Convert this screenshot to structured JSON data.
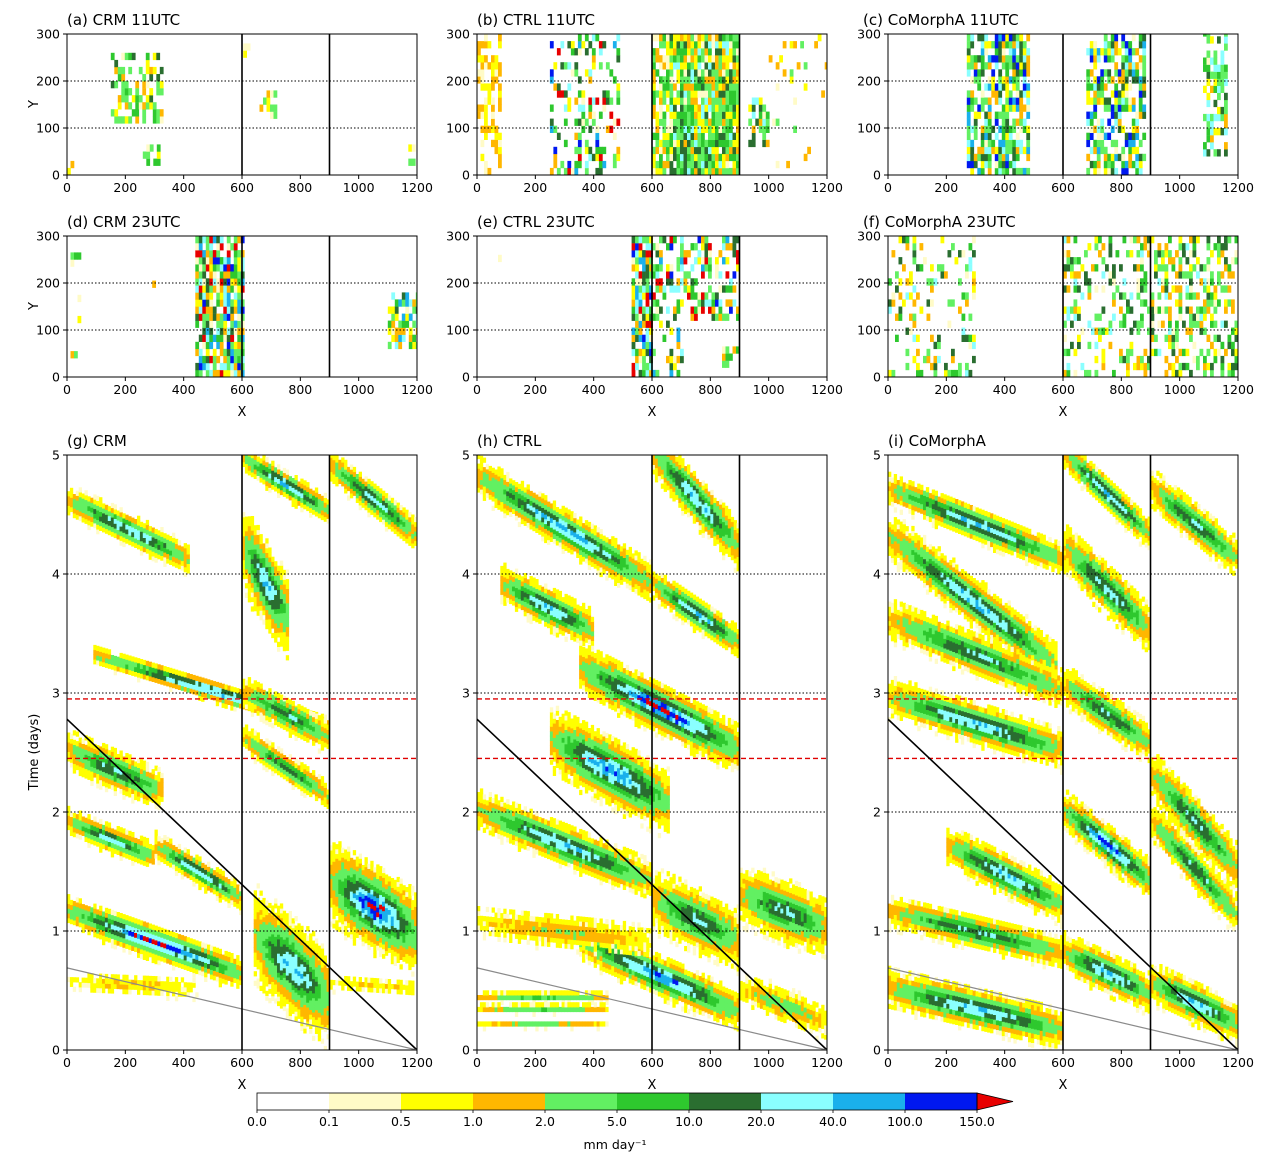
{
  "colorbar": {
    "levels": [
      "0.0",
      "0.1",
      "0.5",
      "1.0",
      "2.0",
      "5.0",
      "10.0",
      "20.0",
      "40.0",
      "100.0",
      "150.0"
    ],
    "colors": [
      "#ffffff",
      "#fffbc7",
      "#ffff00",
      "#ffb700",
      "#62f062",
      "#2ec82e",
      "#2a6e30",
      "#8affff",
      "#1ab0ec",
      "#0018f0",
      "#e80000"
    ],
    "label": "mm day⁻¹"
  },
  "chart_data": [
    {
      "panel": "a",
      "type": "heatmap",
      "title": "(a) CRM 11UTC",
      "xlabel": "",
      "ylabel": "Y",
      "xlim": [
        0,
        1200
      ],
      "ylim": [
        0,
        300
      ],
      "xticks": [
        "0",
        "200",
        "400",
        "600",
        "800",
        "1000",
        "1200"
      ],
      "yticks": [
        "0",
        "100",
        "200",
        "300"
      ],
      "vlines": [
        600,
        900
      ],
      "hlines_dotted": [
        100,
        200
      ],
      "precip_features": [
        {
          "x": [
            150,
            330
          ],
          "y": [
            110,
            250
          ],
          "max_category": "5.0–10.0"
        },
        {
          "x": [
            260,
            310
          ],
          "y": [
            20,
            60
          ],
          "max_category": "5.0–10.0"
        },
        {
          "x": [
            660,
            720
          ],
          "y": [
            120,
            170
          ],
          "max_category": "5.0–10.0"
        },
        {
          "x": [
            1170,
            1200
          ],
          "y": [
            20,
            60
          ],
          "max_category": "5.0–10.0"
        }
      ]
    },
    {
      "panel": "b",
      "type": "heatmap",
      "title": "(b) CTRL 11UTC",
      "xlabel": "",
      "ylabel": "",
      "xlim": [
        0,
        1200
      ],
      "ylim": [
        0,
        300
      ],
      "xticks": [
        "0",
        "200",
        "400",
        "600",
        "800",
        "1000",
        "1200"
      ],
      "yticks": [
        "0",
        "100",
        "200",
        "300"
      ],
      "vlines": [
        600,
        900
      ],
      "hlines_dotted": [
        100,
        200
      ],
      "precip_features": [
        {
          "x": [
            0,
            80
          ],
          "y": [
            0,
            300
          ],
          "max_category": "0.5–1.0"
        },
        {
          "x": [
            250,
            480
          ],
          "y": [
            0,
            300
          ],
          "max_category": ">150.0"
        },
        {
          "x": [
            600,
            900
          ],
          "y": [
            0,
            300
          ],
          "max_category": "10.0–20.0"
        },
        {
          "x": [
            930,
            1000
          ],
          "y": [
            60,
            160
          ],
          "max_category": "20.0–40.0"
        }
      ]
    },
    {
      "panel": "c",
      "type": "heatmap",
      "title": "(c) CoMorphA 11UTC",
      "xlabel": "",
      "ylabel": "",
      "xlim": [
        0,
        1200
      ],
      "ylim": [
        0,
        300
      ],
      "xticks": [
        "0",
        "200",
        "400",
        "600",
        "800",
        "1000",
        "1200"
      ],
      "yticks": [
        "0",
        "100",
        "200",
        "300"
      ],
      "vlines": [
        600,
        900
      ],
      "hlines_dotted": [
        100,
        200
      ],
      "precip_features": [
        {
          "x": [
            270,
            480
          ],
          "y": [
            0,
            300
          ],
          "max_category": "40.0–100.0"
        },
        {
          "x": [
            680,
            880
          ],
          "y": [
            0,
            300
          ],
          "max_category": "40.0–100.0"
        },
        {
          "x": [
            1080,
            1160
          ],
          "y": [
            40,
            300
          ],
          "max_category": "20.0–40.0"
        }
      ]
    },
    {
      "panel": "d",
      "type": "heatmap",
      "title": "(d) CRM 23UTC",
      "xlabel": "X",
      "ylabel": "Y",
      "xlim": [
        0,
        1200
      ],
      "ylim": [
        0,
        300
      ],
      "xticks": [
        "0",
        "200",
        "400",
        "600",
        "800",
        "1000",
        "1200"
      ],
      "yticks": [
        "0",
        "100",
        "200",
        "300"
      ],
      "vlines": [
        600,
        900
      ],
      "hlines_dotted": [
        100,
        200
      ],
      "precip_features": [
        {
          "x": [
            440,
            600
          ],
          "y": [
            0,
            300
          ],
          "max_category": ">150.0"
        },
        {
          "x": [
            1100,
            1200
          ],
          "y": [
            60,
            180
          ],
          "max_category": "40.0–100.0"
        },
        {
          "x": [
            0,
            40
          ],
          "y": [
            40,
            260
          ],
          "max_category": "5.0–10.0"
        }
      ]
    },
    {
      "panel": "e",
      "type": "heatmap",
      "title": "(e) CTRL 23UTC",
      "xlabel": "X",
      "ylabel": "",
      "xlim": [
        0,
        1200
      ],
      "ylim": [
        0,
        300
      ],
      "xticks": [
        "0",
        "200",
        "400",
        "600",
        "800",
        "1000",
        "1200"
      ],
      "yticks": [
        "0",
        "100",
        "200",
        "300"
      ],
      "vlines": [
        600,
        900
      ],
      "hlines_dotted": [
        100,
        200
      ],
      "precip_features": [
        {
          "x": [
            530,
            600
          ],
          "y": [
            0,
            300
          ],
          "max_category": ">150.0"
        },
        {
          "x": [
            600,
            900
          ],
          "y": [
            0,
            300
          ],
          "max_category": ">150.0"
        }
      ]
    },
    {
      "panel": "f",
      "type": "heatmap",
      "title": "(f) CoMorphA 23UTC",
      "xlabel": "X",
      "ylabel": "",
      "xlim": [
        0,
        1200
      ],
      "ylim": [
        0,
        300
      ],
      "xticks": [
        "0",
        "200",
        "400",
        "600",
        "800",
        "1000",
        "1200"
      ],
      "yticks": [
        "0",
        "100",
        "200",
        "300"
      ],
      "vlines": [
        600,
        900
      ],
      "hlines_dotted": [
        100,
        200
      ],
      "precip_features": [
        {
          "x": [
            0,
            300
          ],
          "y": [
            0,
            300
          ],
          "max_category": "10.0–20.0"
        },
        {
          "x": [
            600,
            900
          ],
          "y": [
            0,
            300
          ],
          "max_category": "10.0–20.0"
        },
        {
          "x": [
            900,
            1200
          ],
          "y": [
            0,
            300
          ],
          "max_category": "10.0–20.0"
        }
      ]
    },
    {
      "panel": "g",
      "type": "heatmap",
      "title": "(g) CRM",
      "xlabel": "X",
      "ylabel": "Time (days)",
      "xlim": [
        0,
        1200
      ],
      "ylim": [
        0,
        5
      ],
      "xticks": [
        "0",
        "200",
        "400",
        "600",
        "800",
        "1000",
        "1200"
      ],
      "yticks": [
        "0",
        "1",
        "2",
        "3",
        "4",
        "5"
      ],
      "vlines": [
        600,
        900
      ],
      "hlines_dotted": [
        1,
        2,
        3,
        4
      ],
      "hlines_dashed_red": [
        2.45,
        2.95
      ],
      "diagonal_lines": [
        {
          "from": [
            0,
            2.78
          ],
          "to": [
            1200,
            0
          ],
          "color": "black"
        },
        {
          "from": [
            0,
            0.69
          ],
          "to": [
            1200,
            0
          ],
          "color": "grey"
        }
      ]
    },
    {
      "panel": "h",
      "type": "heatmap",
      "title": "(h) CTRL",
      "xlabel": "X",
      "ylabel": "",
      "xlim": [
        0,
        1200
      ],
      "ylim": [
        0,
        5
      ],
      "xticks": [
        "0",
        "200",
        "400",
        "600",
        "800",
        "1000",
        "1200"
      ],
      "yticks": [
        "0",
        "1",
        "2",
        "3",
        "4",
        "5"
      ],
      "vlines": [
        600,
        900
      ],
      "hlines_dotted": [
        1,
        2,
        3,
        4
      ],
      "hlines_dashed_red": [
        2.45,
        2.95
      ],
      "diagonal_lines": [
        {
          "from": [
            0,
            2.78
          ],
          "to": [
            1200,
            0
          ],
          "color": "black"
        },
        {
          "from": [
            0,
            0.69
          ],
          "to": [
            1200,
            0
          ],
          "color": "grey"
        }
      ]
    },
    {
      "panel": "i",
      "type": "heatmap",
      "title": "(i) CoMorphA",
      "xlabel": "X",
      "ylabel": "",
      "xlim": [
        0,
        1200
      ],
      "ylim": [
        0,
        5
      ],
      "xticks": [
        "0",
        "200",
        "400",
        "600",
        "800",
        "1000",
        "1200"
      ],
      "yticks": [
        "0",
        "1",
        "2",
        "3",
        "4",
        "5"
      ],
      "vlines": [
        600,
        900
      ],
      "hlines_dotted": [
        1,
        2,
        3,
        4
      ],
      "hlines_dashed_red": [
        2.45,
        2.95
      ],
      "diagonal_lines": [
        {
          "from": [
            0,
            2.78
          ],
          "to": [
            1200,
            0
          ],
          "color": "black"
        },
        {
          "from": [
            0,
            0.69
          ],
          "to": [
            1200,
            0
          ],
          "color": "grey"
        }
      ]
    }
  ]
}
